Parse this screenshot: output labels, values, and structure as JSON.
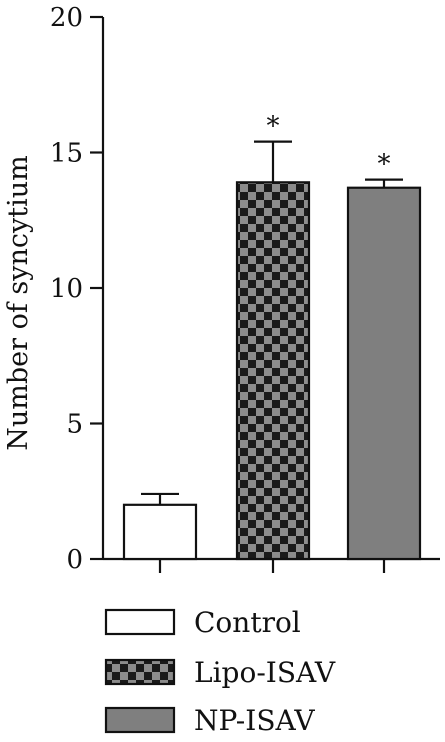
{
  "chart_data": {
    "type": "bar",
    "title": "",
    "xlabel": "",
    "ylabel": "Number of syncytium",
    "ylim": [
      0,
      20
    ],
    "yticks": [
      0,
      5,
      10,
      15,
      20
    ],
    "categories": [
      "Control",
      "Lipo-ISAV",
      "NP-ISAV"
    ],
    "values": [
      2.0,
      13.9,
      13.7
    ],
    "errors": [
      0.4,
      1.5,
      0.3
    ],
    "significance": [
      "",
      "*",
      "*"
    ],
    "fills": [
      "white",
      "checker",
      "solid-gray"
    ],
    "colors": {
      "solid_gray": "#7f7f7f",
      "checker_dark": "#1a1a1a",
      "checker_light": "#8c8c8c",
      "axis": "#111111"
    },
    "legend": {
      "position": "bottom",
      "entries": [
        "Control",
        "Lipo-ISAV",
        "NP-ISAV"
      ]
    },
    "grid": false
  }
}
